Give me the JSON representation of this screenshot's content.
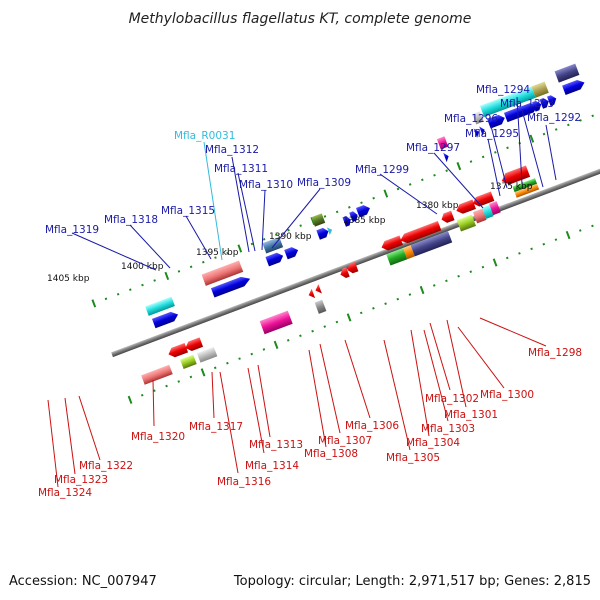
{
  "title": "Methylobacillus flagellatus KT, complete genome",
  "accession": "Accession: NC_007947",
  "summary": "Topology: circular; Length: 2,971,517 bp; Genes: 2,815",
  "colors": {
    "top_label": "#1a1aa8",
    "rna_label": "#33bbdd",
    "bottom_label": "#cc1111",
    "backbone": "#888888",
    "tick": "#1c8a1c"
  },
  "ticks": [
    "1375 kbp",
    "1380 kbp",
    "1385 kbp",
    "1390 kbp",
    "1395 kbp",
    "1400 kbp",
    "1405 kbp"
  ],
  "top_labels": [
    "Mfla_1294",
    "Mfla_1293",
    "Mfla_1296",
    "Mfla_1292",
    "Mfla_1295",
    "Mfla_1297",
    "Mfla_R0031",
    "Mfla_1312",
    "Mfla_1311",
    "Mfla_1299",
    "Mfla_1310",
    "Mfla_1309",
    "Mfla_1315",
    "Mfla_1318",
    "Mfla_1319"
  ],
  "bottom_labels": [
    "Mfla_1298",
    "Mfla_1300",
    "Mfla_1302",
    "Mfla_1301",
    "Mfla_1303",
    "Mfla_1306",
    "Mfla_1304",
    "Mfla_1307",
    "Mfla_1305",
    "Mfla_1308",
    "Mfla_1320",
    "Mfla_1317",
    "Mfla_1313",
    "Mfla_1314",
    "Mfla_1316",
    "Mfla_1322",
    "Mfla_1323",
    "Mfla_1324"
  ]
}
